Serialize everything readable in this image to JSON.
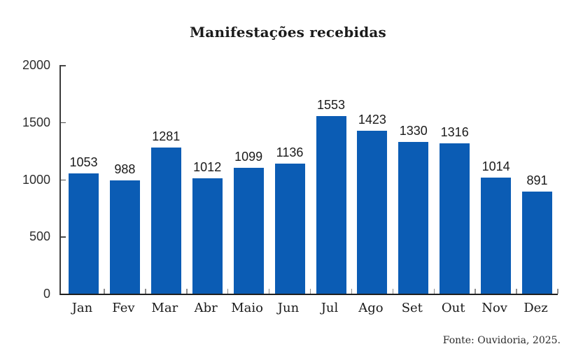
{
  "chart_data": {
    "type": "bar",
    "title": "Manifestações recebidas",
    "categories": [
      "Jan",
      "Fev",
      "Mar",
      "Abr",
      "Maio",
      "Jun",
      "Jul",
      "Ago",
      "Set",
      "Out",
      "Nov",
      "Dez"
    ],
    "values": [
      1053,
      988,
      1281,
      1012,
      1099,
      1136,
      1553,
      1423,
      1330,
      1316,
      1014,
      891
    ],
    "ylim": [
      0,
      2000
    ],
    "yticks": [
      0,
      500,
      1000,
      1500,
      2000
    ],
    "value_labels": true,
    "grid": false,
    "legend": "none",
    "bar_color": "#0b5cb4",
    "source": "Fonte: Ouvidoria, 2025."
  }
}
